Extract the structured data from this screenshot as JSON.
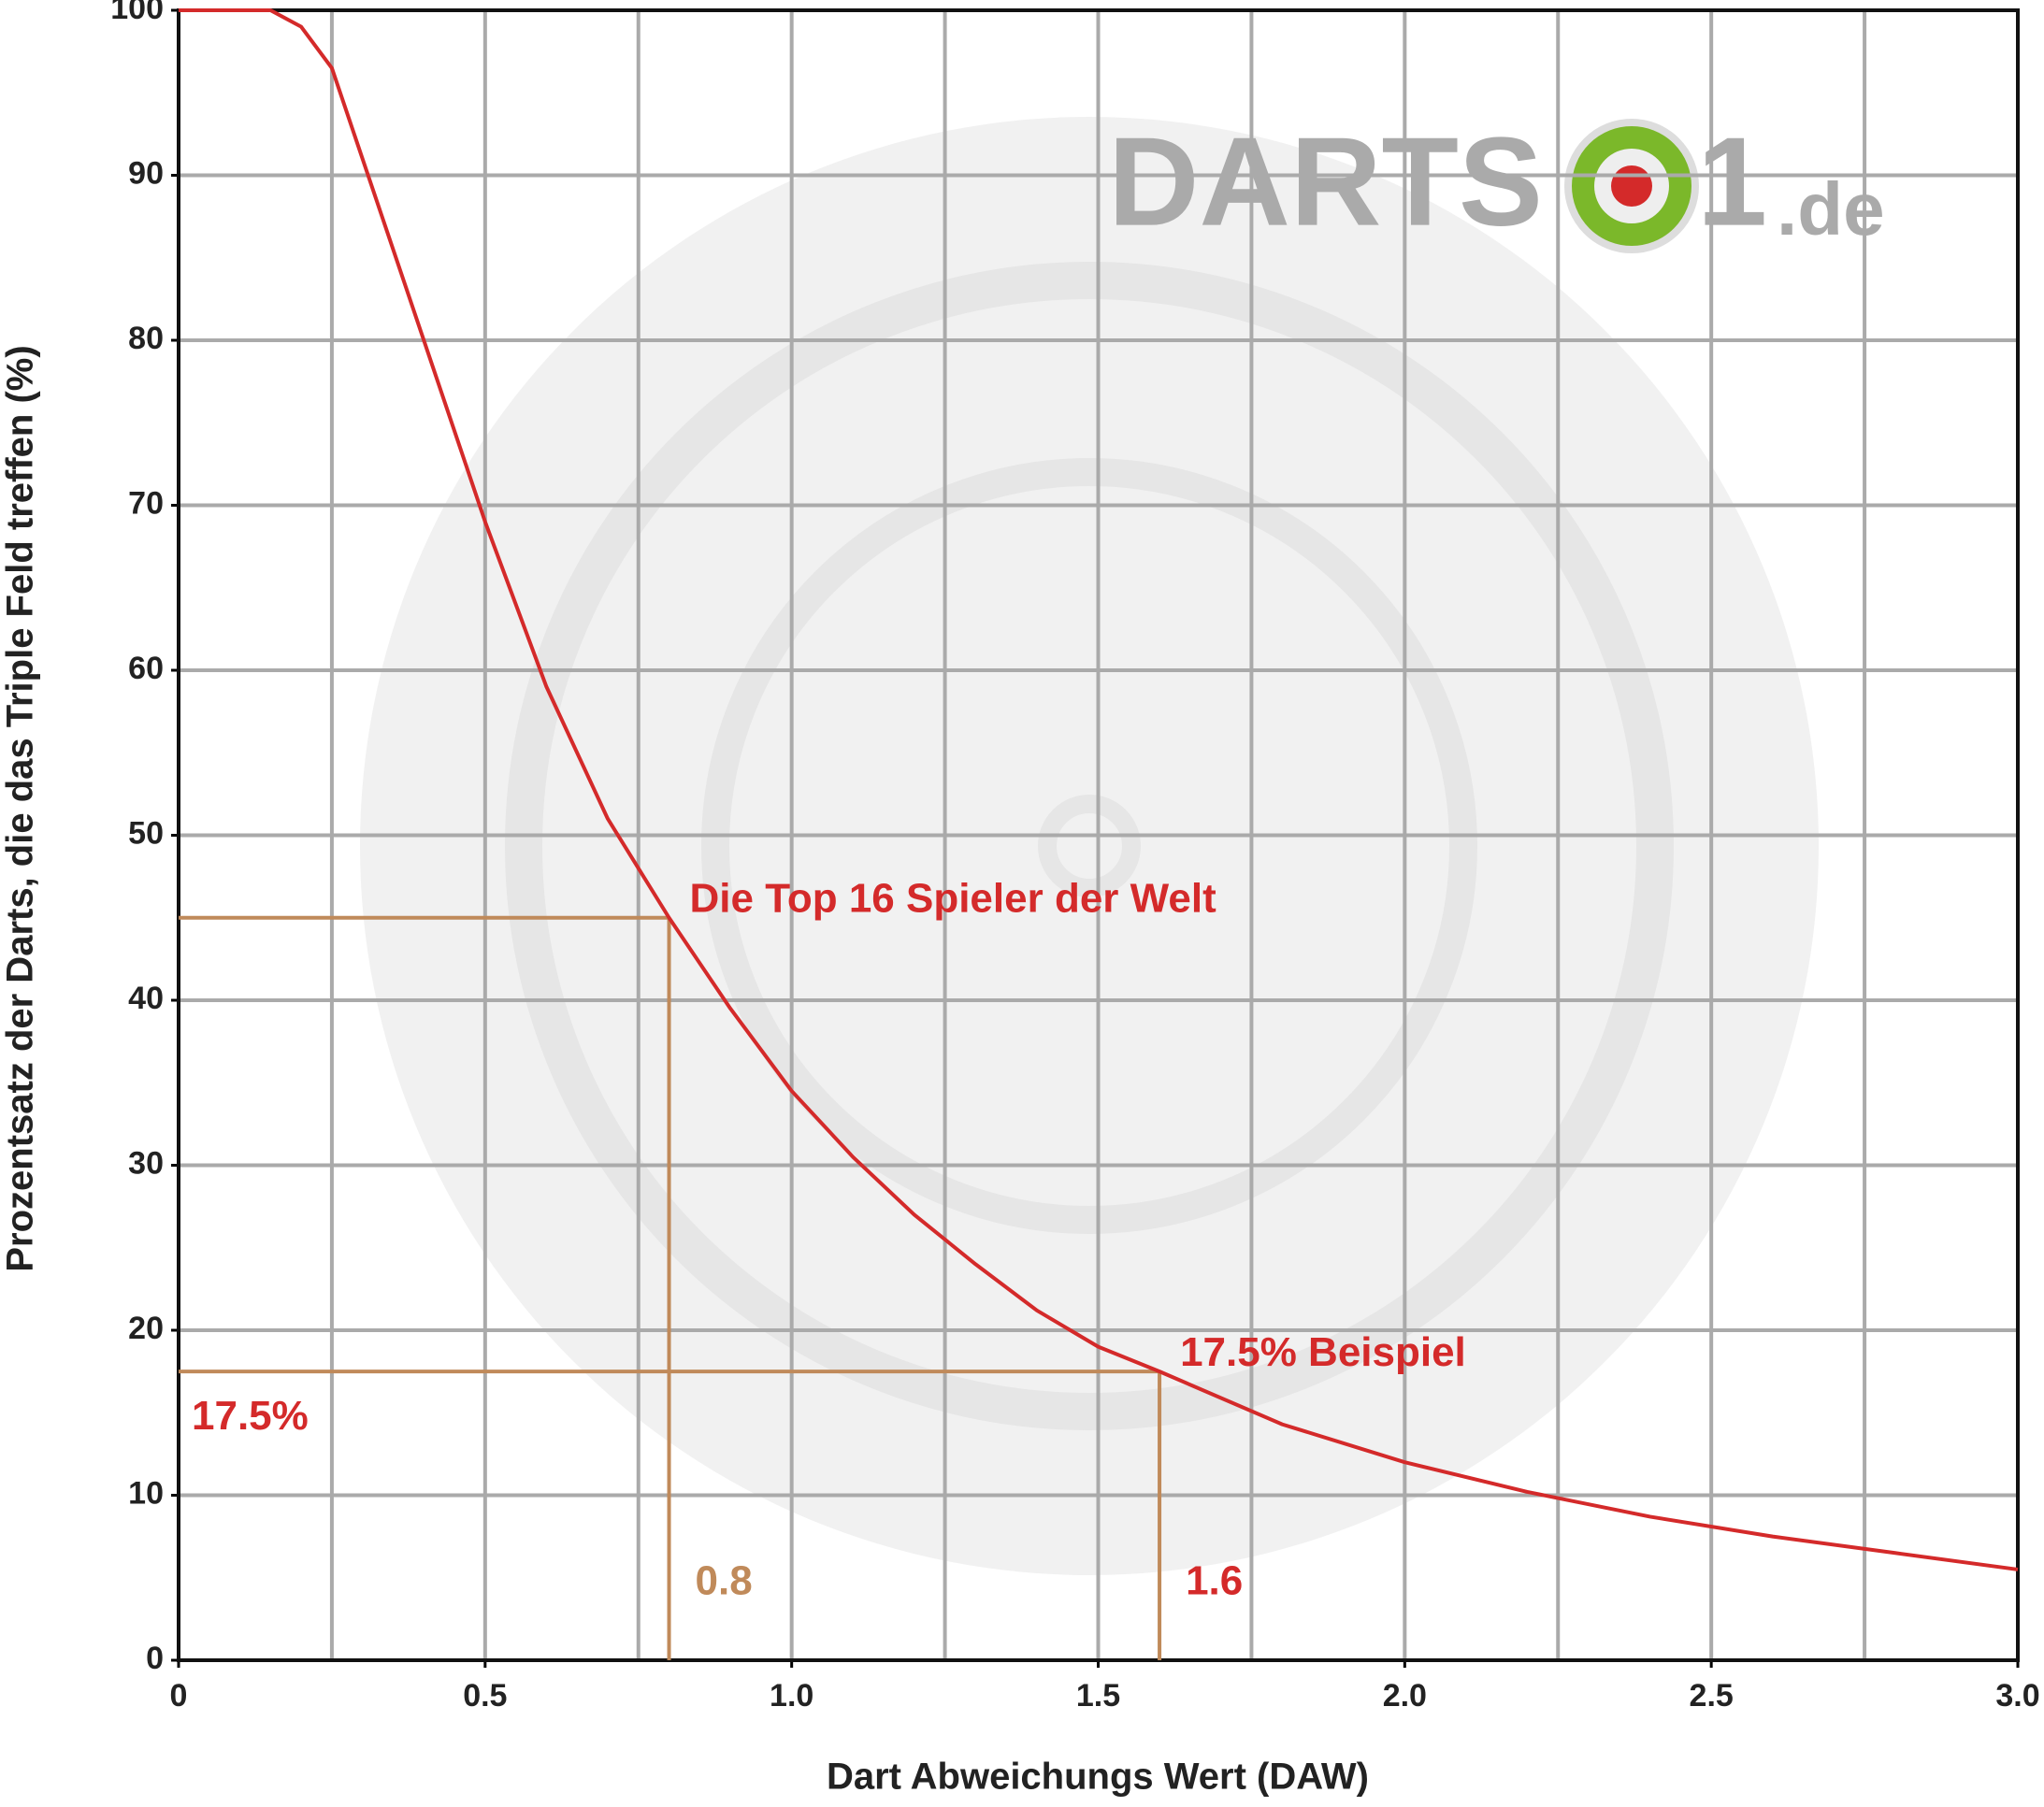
{
  "chart_data": {
    "type": "line",
    "xlabel": "Dart Abweichungs Wert (DAW)",
    "ylabel": "Prozentsatz der Darts, die das Triple Feld treffen (%)",
    "logo": [
      "DARTS",
      "1",
      ".de"
    ],
    "x": [
      0,
      0.1,
      0.15,
      0.2,
      0.25,
      0.3,
      0.4,
      0.5,
      0.6,
      0.7,
      0.8,
      0.9,
      1.0,
      1.1,
      1.2,
      1.3,
      1.4,
      1.5,
      1.6,
      1.8,
      2.0,
      2.2,
      2.4,
      2.6,
      2.8,
      3.0
    ],
    "series": [
      {
        "color": "#d42a2a",
        "values": [
          100,
          100,
          100,
          99,
          96.5,
          91,
          80,
          69,
          59,
          51,
          45,
          39.5,
          34.5,
          30.5,
          27,
          24,
          21.2,
          19,
          17.5,
          14.3,
          12,
          10.2,
          8.7,
          7.5,
          6.5,
          5.5
        ]
      }
    ],
    "xlim": [
      0,
      3
    ],
    "ylim": [
      0,
      100
    ],
    "xticks": [
      0,
      0.5,
      {
        "value": 1,
        "label": "1.0"
      },
      1.5,
      {
        "value": 2,
        "label": "2.0"
      },
      2.5,
      {
        "value": 3,
        "label": "3.0"
      }
    ],
    "xgrid_minor": [
      0.25,
      0.75,
      1.25,
      1.75,
      2.25,
      2.75
    ],
    "yticks": [
      0,
      10,
      20,
      30,
      40,
      50,
      60,
      70,
      80,
      90,
      100
    ],
    "grid": true,
    "reference_lines": [
      {
        "x": {
          "value": 0.8,
          "label": "0.8"
        },
        "y": 45,
        "color": "#c08a5a",
        "x_label_color": "#c08a5a",
        "label": "Die Top 16 Spieler der Welt"
      },
      {
        "x": {
          "value": 1.6,
          "label": "1.6"
        },
        "y": {
          "value": 17.5,
          "label": "17.5%"
        },
        "color": "#c08a5a",
        "x_label_color": "#d42a2a",
        "label": "17.5% Beispiel"
      }
    ]
  }
}
